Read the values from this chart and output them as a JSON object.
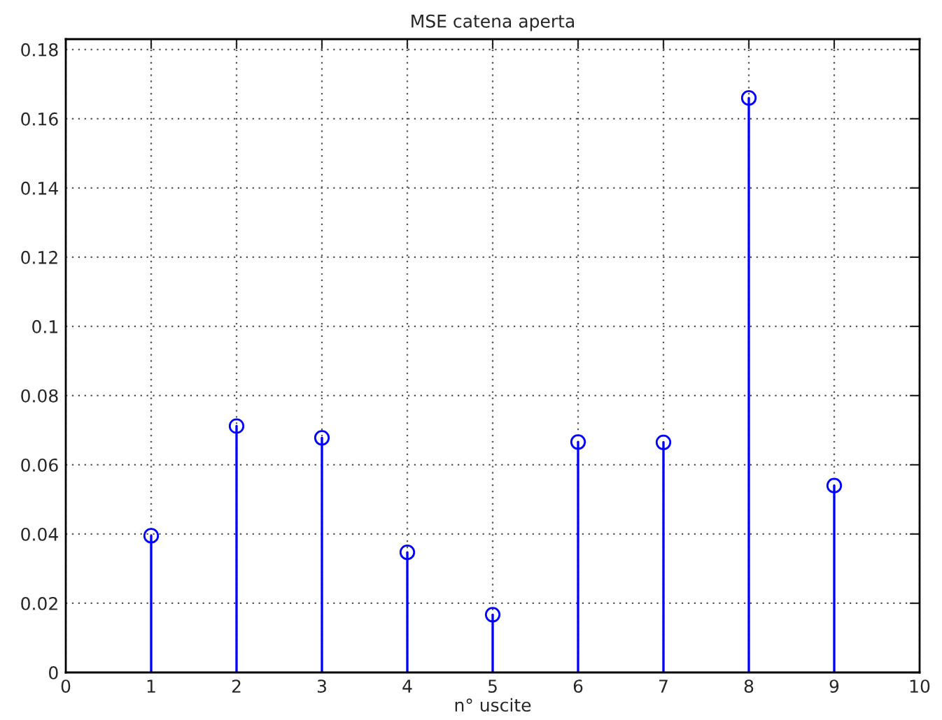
{
  "chart_data": {
    "type": "lollipop",
    "title": "MSE catena aperta",
    "xlabel": "n° uscite",
    "x": [
      1,
      2,
      3,
      4,
      5,
      6,
      7,
      8,
      9
    ],
    "series": [
      {
        "color": "#0000ff",
        "values": [
          0.0395,
          0.0712,
          0.0678,
          0.0347,
          0.0167,
          0.0666,
          0.0665,
          0.166,
          0.054
        ]
      }
    ],
    "xlim": [
      0,
      10
    ],
    "xticks": [
      0,
      1,
      2,
      3,
      4,
      5,
      6,
      7,
      8,
      9,
      10
    ],
    "ylim": [
      0,
      0.183
    ],
    "yticks": [
      0,
      0.02,
      0.04,
      0.06,
      0.08,
      0.1,
      0.12,
      0.14,
      0.16,
      0.18
    ],
    "grid": true,
    "marker": "circle"
  }
}
